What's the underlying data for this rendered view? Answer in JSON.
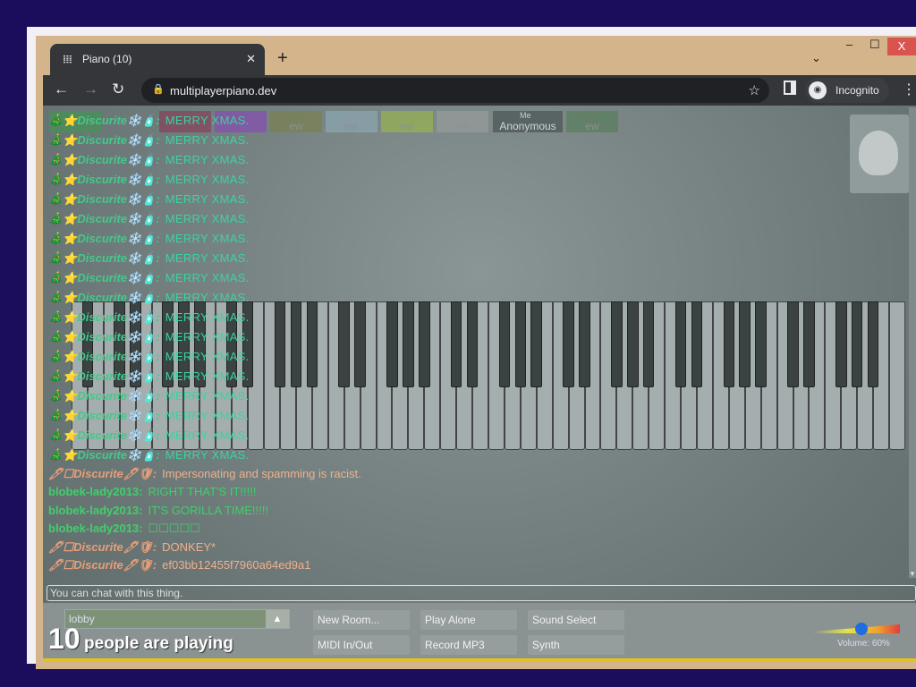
{
  "browser": {
    "tab_title": "Piano (10)",
    "url": "multiplayerpiano.dev",
    "profile": "Incognito"
  },
  "colors": {
    "frame": "#d4b48b",
    "page": "#7a8686",
    "accent_yellow": "#e5c21a",
    "volume_knob": "#1f6de0"
  },
  "name_tags": [
    {
      "label": "",
      "color": "#3a9a4a"
    },
    {
      "label": "",
      "color": "#8a3050"
    },
    {
      "label": "",
      "color": "#8a3cc0"
    },
    {
      "label": "ew",
      "color": "#7a8040"
    },
    {
      "label": "ew",
      "color": "#90b0c0"
    },
    {
      "label": "ew",
      "color": "#a0c040"
    },
    {
      "label": "ew",
      "color": "#a0a0a0"
    },
    {
      "label": "Anonymous",
      "color": "#555f5f",
      "me": "Me"
    },
    {
      "label": "ew",
      "color": "#507a50"
    }
  ],
  "chat": {
    "messages": [
      {
        "style": "x",
        "name": "🎄⭐Discurite❄️🧴:",
        "text": "MERRY XMAS."
      },
      {
        "style": "x",
        "name": "🎄⭐Discurite❄️🧴:",
        "text": "MERRY XMAS."
      },
      {
        "style": "x",
        "name": "🎄⭐Discurite❄️🧴:",
        "text": "MERRY XMAS."
      },
      {
        "style": "x",
        "name": "🎄⭐Discurite❄️🧴:",
        "text": "MERRY XMAS."
      },
      {
        "style": "x",
        "name": "🎄⭐Discurite❄️🧴:",
        "text": "MERRY XMAS."
      },
      {
        "style": "x",
        "name": "🎄⭐Discurite❄️🧴:",
        "text": "MERRY XMAS."
      },
      {
        "style": "x",
        "name": "🎄⭐Discurite❄️🧴:",
        "text": "MERRY XMAS."
      },
      {
        "style": "x",
        "name": "🎄⭐Discurite❄️🧴:",
        "text": "MERRY XMAS."
      },
      {
        "style": "x",
        "name": "🎄⭐Discurite❄️🧴:",
        "text": "MERRY XMAS."
      },
      {
        "style": "x",
        "name": "🎄⭐Discurite❄️🧴:",
        "text": "MERRY XMAS."
      },
      {
        "style": "x",
        "name": "🎄⭐Discurite❄️🧴:",
        "text": "MERRY XMAS."
      },
      {
        "style": "x",
        "name": "🎄⭐Discurite❄️🧴:",
        "text": "MERRY XMAS."
      },
      {
        "style": "x",
        "name": "🎄⭐Discurite❄️🧴:",
        "text": "MERRY XMAS."
      },
      {
        "style": "x",
        "name": "🎄⭐Discurite❄️🧴:",
        "text": "MERRY XMAS."
      },
      {
        "style": "x",
        "name": "🎄⭐Discurite❄️🧴:",
        "text": "MERRY XMAS."
      },
      {
        "style": "x",
        "name": "🎄⭐Discurite❄️🧴:",
        "text": "MERRY XMAS."
      },
      {
        "style": "x",
        "name": "🎄⭐Discurite❄️🧴:",
        "text": "MERRY XMAS."
      },
      {
        "style": "x",
        "name": "🎄⭐Discurite❄️🧴:",
        "text": "MERRY XMAS."
      },
      {
        "style": "o",
        "name": "🖊☐Discurite🖊🛡:",
        "text": "Impersonating and spamming is racist."
      },
      {
        "style": "g",
        "name": "blobek-lady2013:",
        "text": "RIGHT THAT'S IT!!!!!"
      },
      {
        "style": "g",
        "name": "blobek-lady2013:",
        "text": "IT'S GORILLA TIME!!!!!"
      },
      {
        "style": "g",
        "name": "blobek-lady2013:",
        "text": "☐☐☐☐☐"
      },
      {
        "style": "o",
        "name": "🖊☐Discurite🖊🛡:",
        "text": "DONKEY*"
      },
      {
        "style": "o",
        "name": "🖊☐Discurite🖊🛡:",
        "text": "ef03bb12455f7960a64ed9a1"
      }
    ],
    "input_placeholder": "You can chat with this thing."
  },
  "bottom": {
    "room": "lobby",
    "count": "10",
    "count_label": "people are playing",
    "buttons": [
      "New Room...",
      "Play Alone",
      "Sound Select",
      "MIDI In/Out",
      "Record MP3",
      "Synth"
    ],
    "volume_label": "Volume: 60%",
    "volume_percent": 60
  }
}
